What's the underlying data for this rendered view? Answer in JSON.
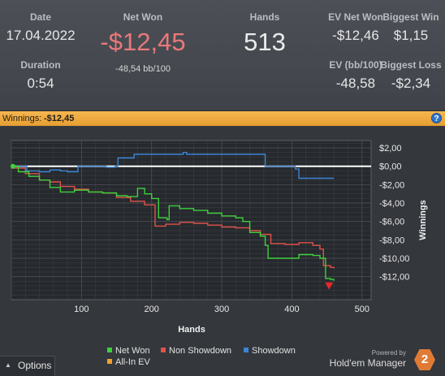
{
  "stats": {
    "date_label": "Date",
    "date_value": "17.04.2022",
    "duration_label": "Duration",
    "duration_value": "0:54",
    "net_won_label": "Net Won",
    "net_won_value": "-$12,45",
    "bb_per_100": "-48,54 bb/100",
    "hands_label": "Hands",
    "hands_value": "513",
    "ev_net_won_label": "EV Net Won",
    "ev_net_won_value": "-$12,46",
    "biggest_win_label": "Biggest Win",
    "biggest_win_value": "$1,15",
    "ev_bb100_label": "EV (bb/100)",
    "ev_bb100_value": "-48,58",
    "biggest_loss_label": "Biggest Loss",
    "biggest_loss_value": "-$2,34"
  },
  "winnings_bar": {
    "label": "Winnings:",
    "value": "-$12,45"
  },
  "colors": {
    "net_won": "#3ed13e",
    "non_showdown": "#e0524a",
    "showdown": "#3a86d6",
    "all_in_ev": "#f0a22e",
    "negative": "#e8797a"
  },
  "chart_data": {
    "type": "line",
    "xlabel": "Hands",
    "ylabel": "Winnings",
    "xlim": [
      0,
      513
    ],
    "ylim": [
      -14.5,
      2.8
    ],
    "x_ticks": [
      100,
      200,
      300,
      400,
      500
    ],
    "y_ticks": [
      {
        "v": 2,
        "label": "$2,00"
      },
      {
        "v": 0,
        "label": "$0,00"
      },
      {
        "v": -2,
        "label": "-$2,00"
      },
      {
        "v": -4,
        "label": "-$4,00"
      },
      {
        "v": -6,
        "label": "-$6,00"
      },
      {
        "v": -8,
        "label": "-$8,00"
      },
      {
        "v": -10,
        "label": "-$10,00"
      },
      {
        "v": -12,
        "label": "-$12,00"
      }
    ],
    "grid": true,
    "series": [
      {
        "name": "Net Won",
        "color": "#3ed13e",
        "points": [
          [
            0,
            0
          ],
          [
            10,
            -0.6
          ],
          [
            25,
            -1.1
          ],
          [
            40,
            -1.5
          ],
          [
            55,
            -2.3
          ],
          [
            70,
            -2.8
          ],
          [
            90,
            -2.6
          ],
          [
            110,
            -2.8
          ],
          [
            130,
            -2.9
          ],
          [
            150,
            -3.2
          ],
          [
            165,
            -3.3
          ],
          [
            180,
            -2.4
          ],
          [
            190,
            -3.0
          ],
          [
            200,
            -3.5
          ],
          [
            210,
            -5.6
          ],
          [
            222,
            -5.8
          ],
          [
            225,
            -4.3
          ],
          [
            240,
            -4.6
          ],
          [
            260,
            -4.8
          ],
          [
            280,
            -5.1
          ],
          [
            300,
            -5.4
          ],
          [
            320,
            -5.6
          ],
          [
            330,
            -6.0
          ],
          [
            340,
            -7.2
          ],
          [
            355,
            -7.6
          ],
          [
            362,
            -8.6
          ],
          [
            366,
            -10.0
          ],
          [
            390,
            -10.0
          ],
          [
            410,
            -9.6
          ],
          [
            430,
            -9.7
          ],
          [
            440,
            -10.0
          ],
          [
            448,
            -12.2
          ],
          [
            455,
            -12.3
          ],
          [
            460,
            -12.45
          ]
        ]
      },
      {
        "name": "Non Showdown",
        "color": "#e0524a",
        "points": [
          [
            0,
            -0.2
          ],
          [
            20,
            -0.8
          ],
          [
            40,
            -1.5
          ],
          [
            55,
            -1.7
          ],
          [
            70,
            -2.2
          ],
          [
            90,
            -2.5
          ],
          [
            110,
            -2.8
          ],
          [
            130,
            -2.9
          ],
          [
            150,
            -3.4
          ],
          [
            170,
            -3.8
          ],
          [
            190,
            -4.2
          ],
          [
            205,
            -6.5
          ],
          [
            220,
            -6.3
          ],
          [
            240,
            -6.1
          ],
          [
            260,
            -6.2
          ],
          [
            280,
            -6.4
          ],
          [
            300,
            -6.6
          ],
          [
            320,
            -6.7
          ],
          [
            340,
            -7.0
          ],
          [
            355,
            -7.4
          ],
          [
            370,
            -8.4
          ],
          [
            390,
            -8.5
          ],
          [
            410,
            -8.3
          ],
          [
            430,
            -8.6
          ],
          [
            440,
            -9.0
          ],
          [
            445,
            -10.8
          ],
          [
            455,
            -11.0
          ],
          [
            460,
            -11.1
          ]
        ]
      },
      {
        "name": "Showdown",
        "color": "#3a86d6",
        "points": [
          [
            0,
            0
          ],
          [
            18,
            0
          ],
          [
            22,
            -0.5
          ],
          [
            40,
            -0.6
          ],
          [
            55,
            -0.4
          ],
          [
            70,
            -0.5
          ],
          [
            80,
            -0.6
          ],
          [
            90,
            -0.6
          ],
          [
            95,
            0
          ],
          [
            130,
            0
          ],
          [
            135,
            -0.1
          ],
          [
            148,
            0
          ],
          [
            152,
            0.9
          ],
          [
            170,
            0.9
          ],
          [
            175,
            1.3
          ],
          [
            240,
            1.3
          ],
          [
            245,
            1.5
          ],
          [
            250,
            1.3
          ],
          [
            355,
            1.3
          ],
          [
            362,
            0
          ],
          [
            405,
            -0.3
          ],
          [
            410,
            -1.3
          ],
          [
            460,
            -1.3
          ]
        ]
      }
    ],
    "zero_line": 0,
    "end_marker": {
      "x": 460,
      "y": -12.45
    }
  },
  "legend": [
    {
      "label": "Net Won",
      "color": "#3ed13e"
    },
    {
      "label": "Non Showdown",
      "color": "#e0524a"
    },
    {
      "label": "Showdown",
      "color": "#3a86d6"
    },
    {
      "label": "All-In EV",
      "color": "#f0a22e"
    }
  ],
  "options_label": "Options",
  "brand": {
    "powered": "Powered by",
    "name": "Hold'em Manager",
    "logo_digit": "2"
  }
}
